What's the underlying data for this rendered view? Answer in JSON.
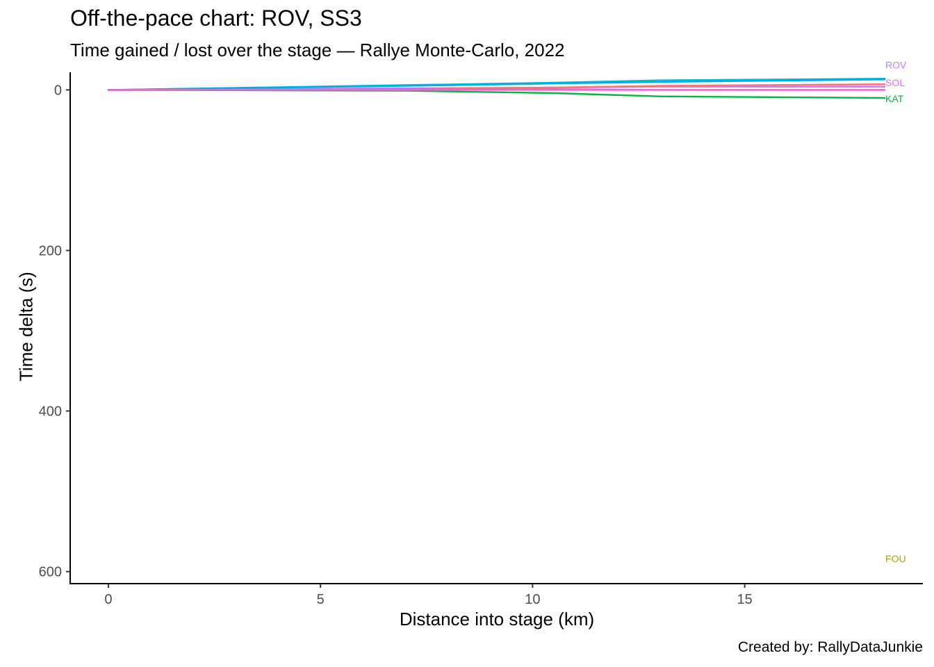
{
  "title": "Off-the-pace chart: ROV, SS3",
  "subtitle": "Time gained / lost over the stage — Rallye Monte-Carlo, 2022",
  "caption": "Created by: RallyDataJunkie",
  "chart_data": {
    "type": "line",
    "title": "Off-the-pace chart: ROV, SS3",
    "subtitle": "Time gained / lost over the stage — Rallye Monte-Carlo, 2022",
    "xlabel": "Distance into stage (km)",
    "ylabel": "Time delta (s)",
    "xlim": [
      -0.9,
      19.2
    ],
    "ylim": [
      -22,
      615
    ],
    "y_reversed": true,
    "x_ticks": [
      0,
      5,
      10,
      15
    ],
    "y_ticks": [
      0,
      200,
      400,
      600
    ],
    "grid": false,
    "legend": "none",
    "series": [
      {
        "name": "FOU",
        "color": "#A3A500",
        "x": [],
        "y": [],
        "end_label_y": 584
      },
      {
        "name": "ROV",
        "color": "#C77CFF",
        "x": [
          0,
          7,
          10.5,
          13,
          18.3
        ],
        "y": [
          0,
          -2,
          -3,
          -4,
          -4
        ],
        "end_label_y": -31
      },
      {
        "name": "SOL",
        "color": "#E76BF3",
        "x": [
          0,
          7,
          10.5,
          13,
          18.3
        ],
        "y": [
          0,
          -1,
          -3,
          -5,
          -7
        ],
        "end_label_y": -9
      },
      {
        "name": "KAT",
        "color": "#00BA38",
        "x": [
          0,
          7,
          10.5,
          13,
          18.3
        ],
        "y": [
          0,
          1,
          4,
          8,
          10
        ],
        "end_label_y": 11
      },
      {
        "name": "",
        "color": "#F8766D",
        "x": [
          0,
          7,
          10.5,
          13,
          18.3
        ],
        "y": [
          0,
          -1,
          -3,
          -5,
          -7
        ]
      },
      {
        "name": "",
        "color": "#00BFC4",
        "x": [
          0,
          7,
          10.5,
          13,
          18.3
        ],
        "y": [
          0,
          -6,
          -9,
          -12,
          -14
        ]
      },
      {
        "name": "",
        "color": "#00A9FF",
        "x": [
          0,
          7,
          10.5,
          13,
          18.3
        ],
        "y": [
          0,
          -5,
          -8,
          -10,
          -13
        ]
      },
      {
        "name": "",
        "color": "#619CFF",
        "x": [
          0,
          7,
          10.5,
          13,
          18.3
        ],
        "y": [
          0,
          -1,
          -1,
          0,
          0
        ]
      },
      {
        "name": "",
        "color": "#FF61C3",
        "x": [
          0,
          7,
          10.5,
          13,
          18.3
        ],
        "y": [
          0,
          0,
          0,
          0,
          0
        ]
      }
    ]
  }
}
